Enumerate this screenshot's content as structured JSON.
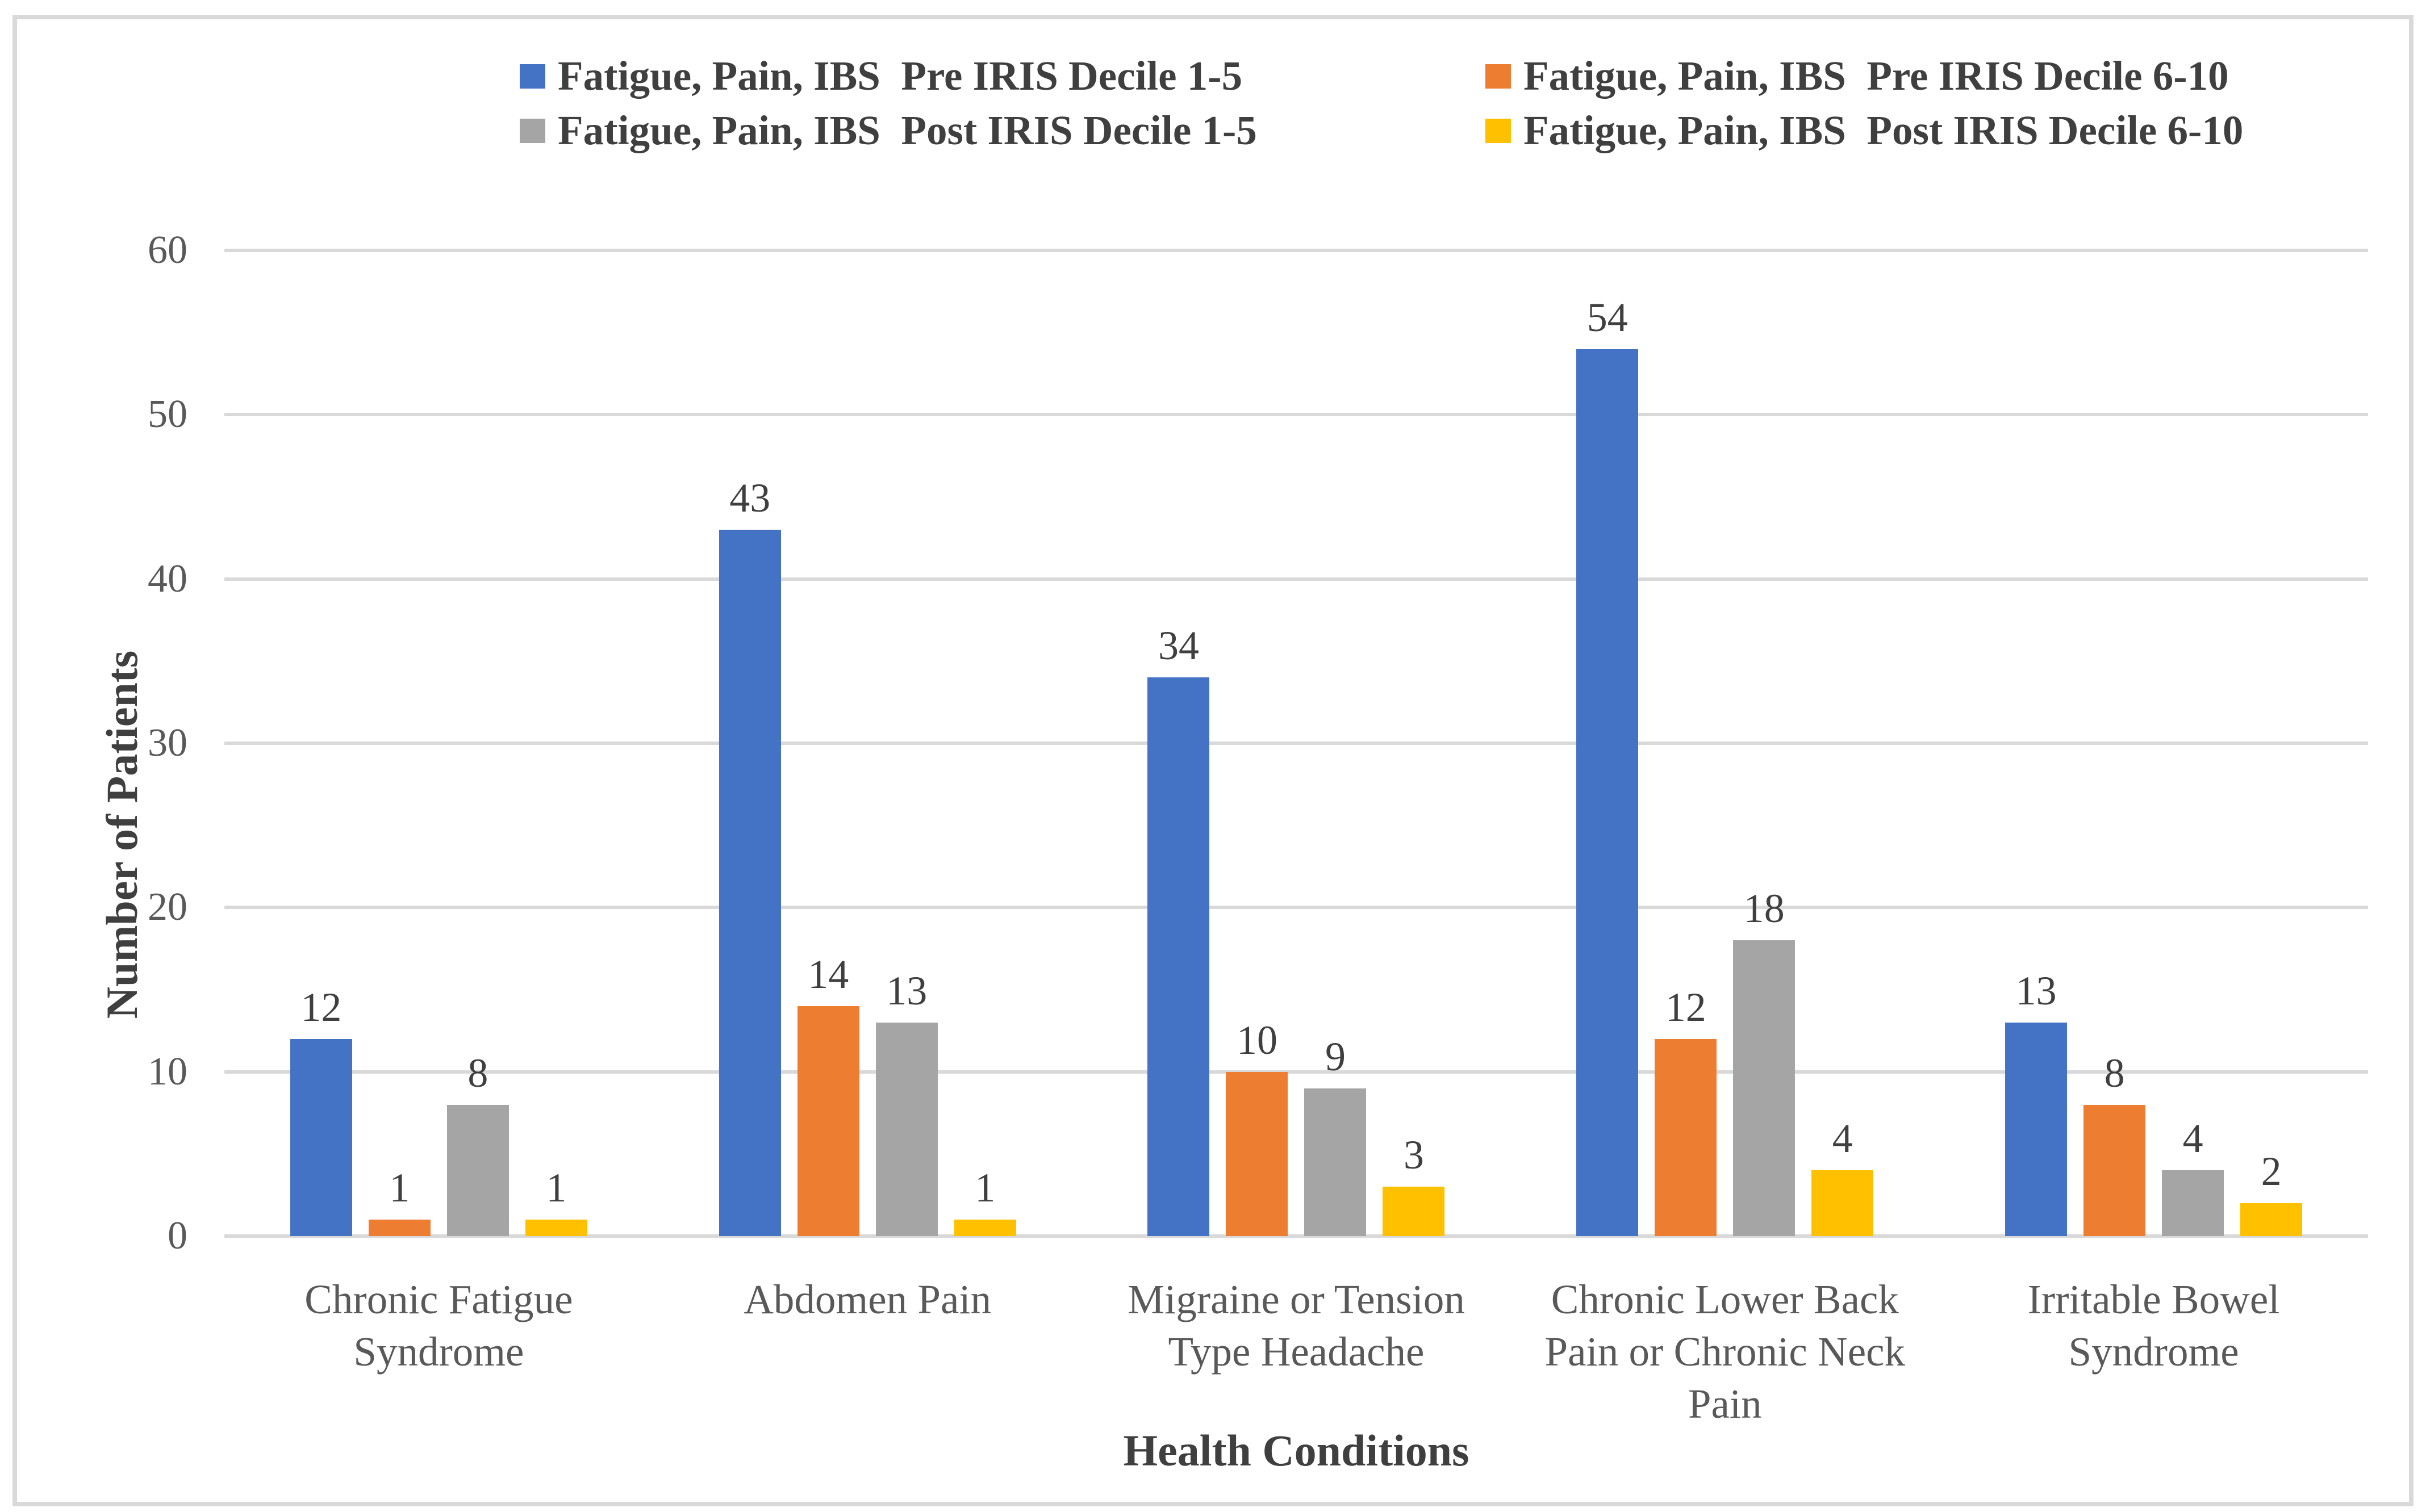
{
  "chart_data": {
    "type": "bar",
    "title": "",
    "xlabel": "Health Conditions",
    "ylabel": "Number of Patients",
    "ylim": [
      0,
      60
    ],
    "yticks": [
      0,
      10,
      20,
      30,
      40,
      50,
      60
    ],
    "grid": true,
    "legend_position": "top",
    "categories": [
      "Chronic Fatigue Syndrome",
      "Abdomen Pain",
      "Migraine or Tension Type Headache",
      "Chronic Lower Back Pain or Chronic Neck Pain",
      "Irritable Bowel Syndrome"
    ],
    "series": [
      {
        "name": "Fatigue, Pain, IBS  Pre IRIS Decile 1-5",
        "color": "#4472C4",
        "values": [
          12,
          43,
          34,
          54,
          13
        ]
      },
      {
        "name": "Fatigue, Pain, IBS  Pre IRIS Decile 6-10",
        "color": "#ED7D31",
        "values": [
          1,
          14,
          10,
          12,
          8
        ]
      },
      {
        "name": "Fatigue, Pain, IBS  Post IRIS Decile 1-5",
        "color": "#A5A5A5",
        "values": [
          8,
          13,
          9,
          18,
          4
        ]
      },
      {
        "name": "Fatigue, Pain, IBS  Post IRIS Decile 6-10",
        "color": "#FFC000",
        "values": [
          1,
          1,
          3,
          4,
          2
        ]
      }
    ]
  },
  "style": {
    "gridline_color": "#D9D9D9",
    "border_color": "#D9D9D9",
    "axis_text_color": "#595959",
    "label_text_color": "#3F3F3F"
  }
}
